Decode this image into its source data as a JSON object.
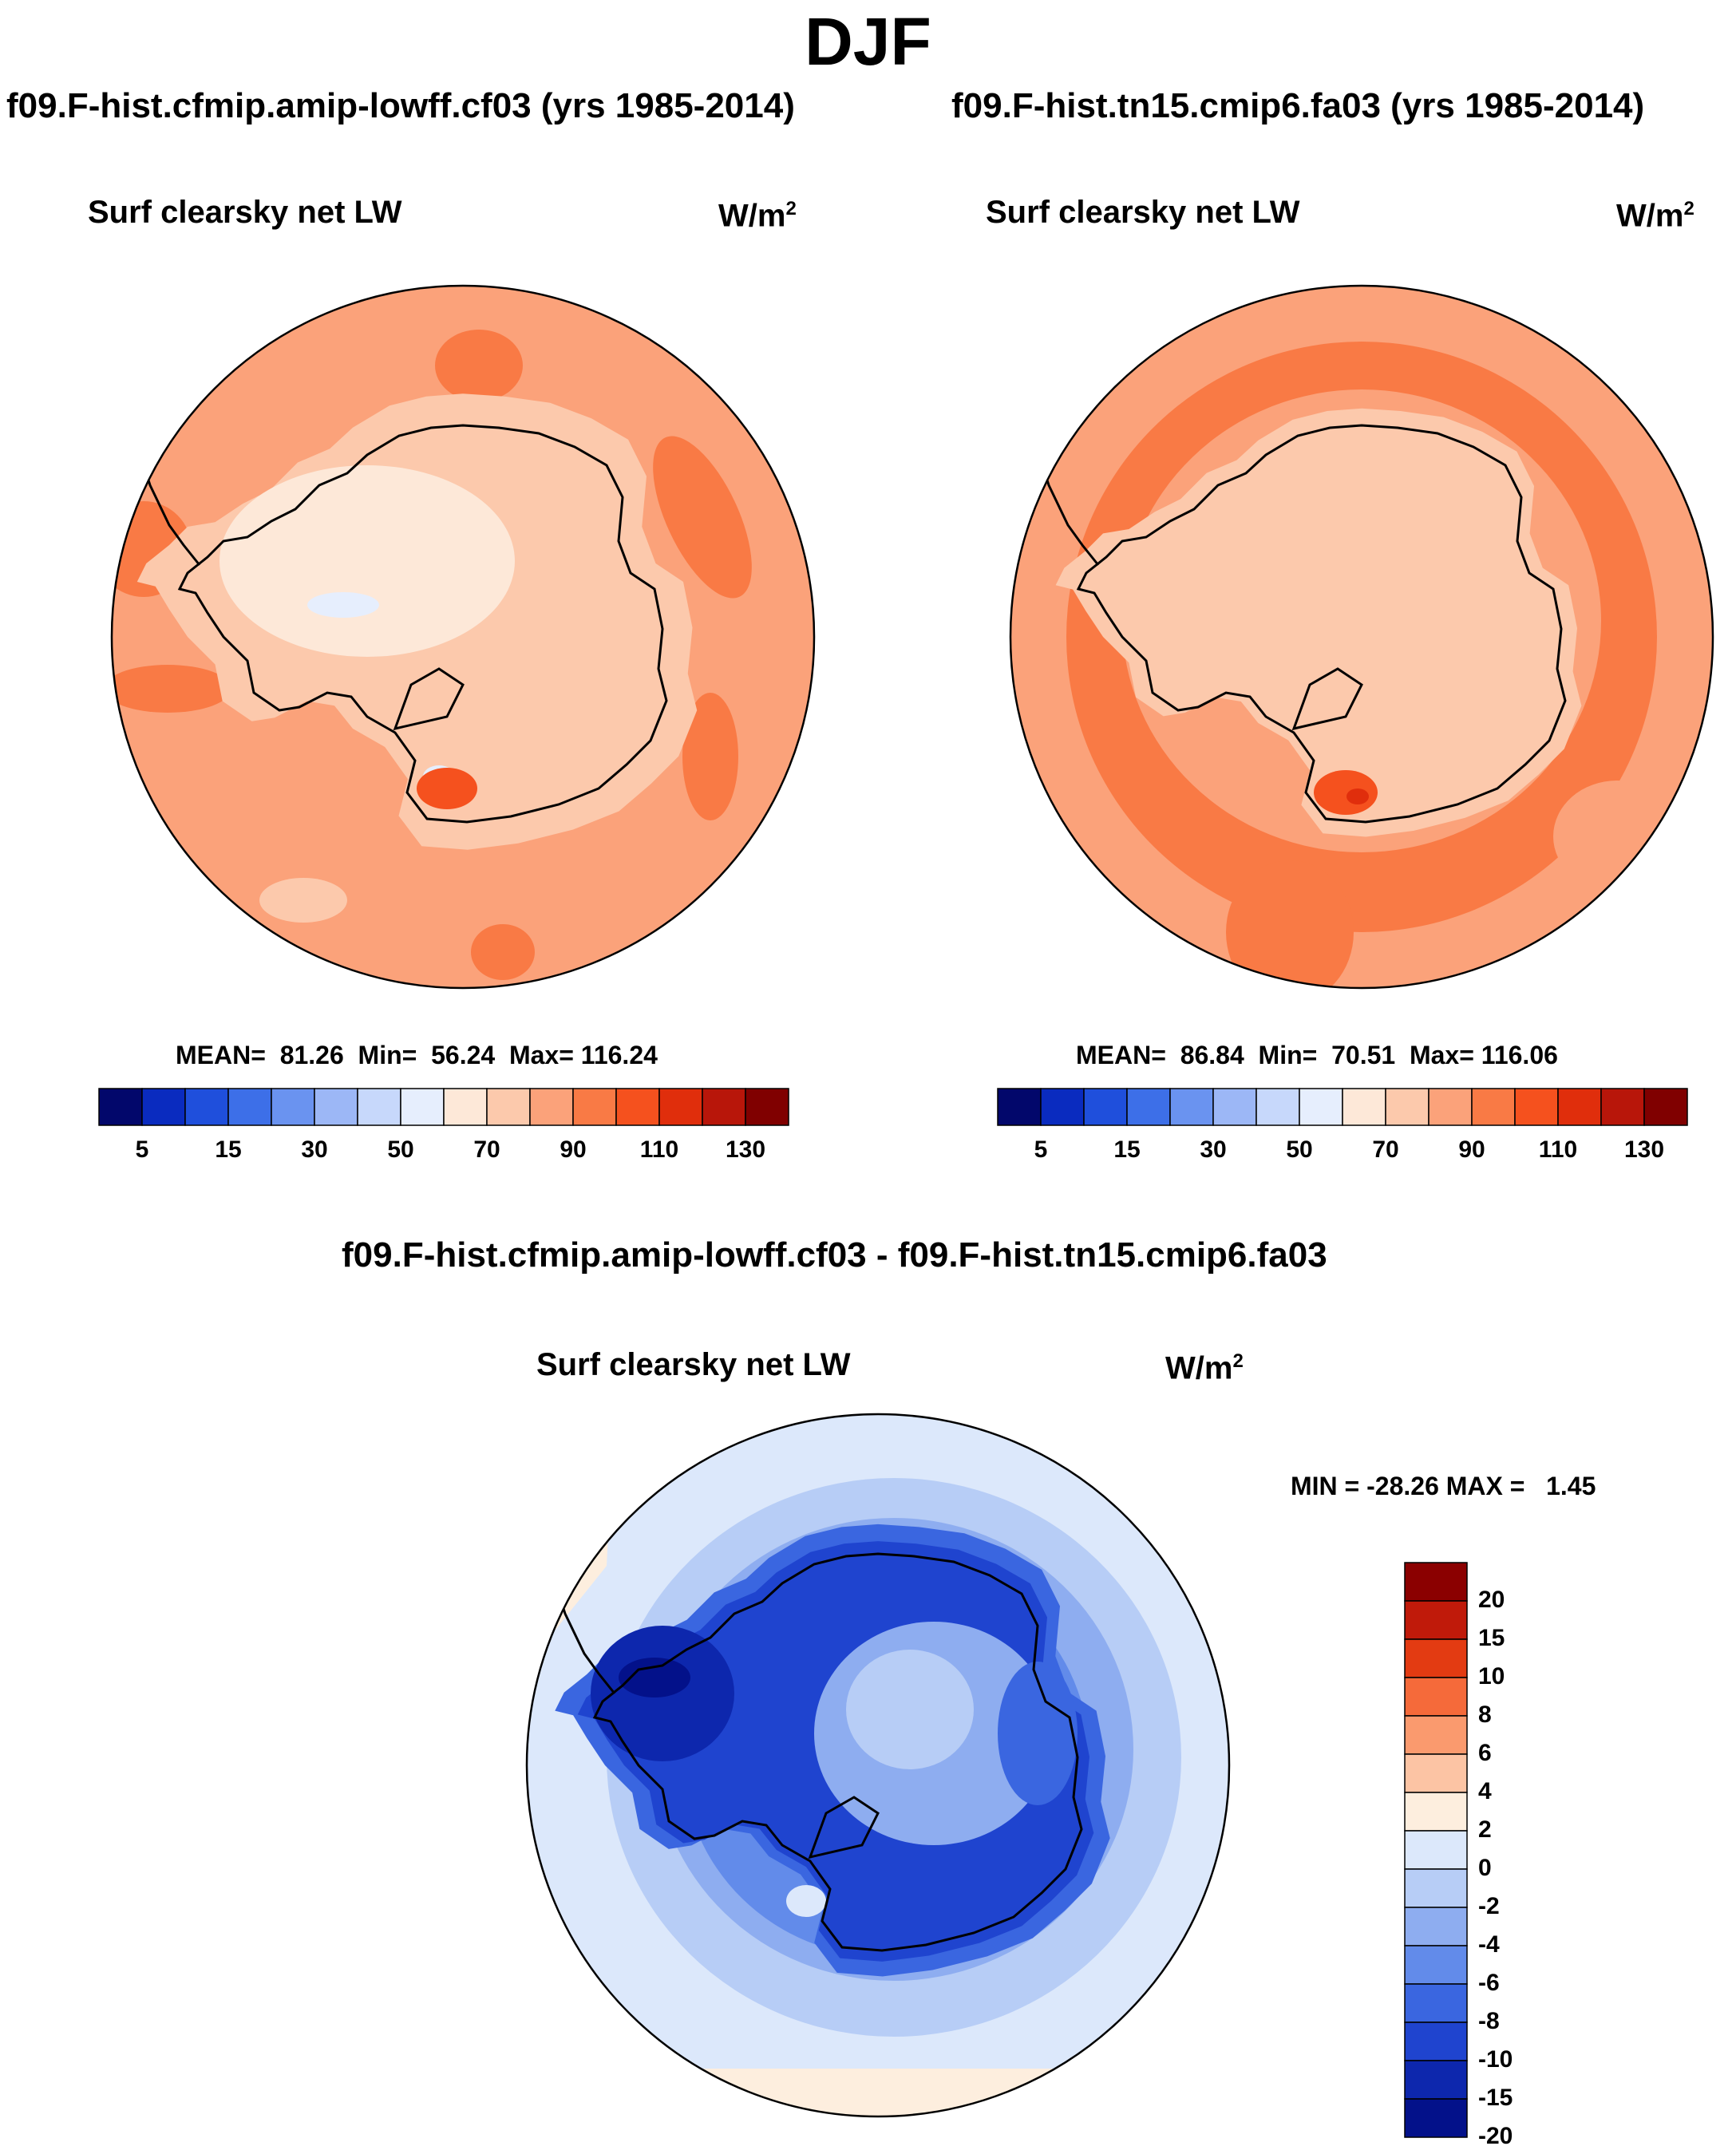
{
  "figure": {
    "season": "DJF"
  },
  "panels": [
    {
      "id": "left",
      "case_title": "f09.F-hist.cfmip.amip-lowff.cf03 (yrs 1985-2014)",
      "variable": "Surf clearsky net LW",
      "units": "W/m",
      "units_sup": "2",
      "stats": {
        "mean_label": "MEAN=",
        "mean": "81.26",
        "min_label": "Min=",
        "min": "56.24",
        "max_label": "Max=",
        "max": "116.24"
      }
    },
    {
      "id": "right",
      "case_title": "f09.F-hist.tn15.cmip6.fa03 (yrs 1985-2014)",
      "variable": "Surf clearsky net LW",
      "units": "W/m",
      "units_sup": "2",
      "stats": {
        "mean_label": "MEAN=",
        "mean": "86.84",
        "min_label": "Min=",
        "min": "70.51",
        "max_label": "Max=",
        "max": "116.06"
      }
    }
  ],
  "diff_panel": {
    "case_title": "f09.F-hist.cfmip.amip-lowff.cf03 - f09.F-hist.tn15.cmip6.fa03",
    "variable": "Surf clearsky net LW",
    "units": "W/m",
    "units_sup": "2",
    "stats": {
      "min_label": "MIN =",
      "min": "-28.26",
      "max_label": "MAX =",
      "max": "1.45"
    }
  },
  "chart_data": [
    {
      "type": "heatmap",
      "title": "Surf clearsky net LW",
      "projection": "south polar stereographic",
      "units": "W/m2",
      "colorbar": {
        "orientation": "horizontal",
        "levels": [
          5,
          10,
          15,
          20,
          30,
          40,
          50,
          60,
          70,
          80,
          90,
          100,
          110,
          120,
          130
        ],
        "tick_labels": [
          "5",
          "15",
          "30",
          "50",
          "70",
          "90",
          "110",
          "130"
        ],
        "colors": [
          "#02076b",
          "#0a2bbf",
          "#1f4fdc",
          "#3d6fe8",
          "#6a93f0",
          "#9cb7f6",
          "#c7d8fb",
          "#e6eefd",
          "#fde8d8",
          "#fcc9ac",
          "#fba27a",
          "#f97a45",
          "#f5511e",
          "#e02e0c",
          "#b8160a",
          "#800000"
        ]
      },
      "series": [
        {
          "name": "f09.F-hist.cfmip.amip-lowff.cf03",
          "mean": 81.26,
          "min": 56.24,
          "max": 116.24
        },
        {
          "name": "f09.F-hist.tn15.cmip6.fa03",
          "mean": 86.84,
          "min": 70.51,
          "max": 116.06
        }
      ]
    },
    {
      "type": "heatmap",
      "title": "Surf clearsky net LW",
      "projection": "south polar stereographic",
      "units": "W/m2",
      "colorbar": {
        "orientation": "vertical",
        "levels": [
          -20,
          -15,
          -10,
          -8,
          -6,
          -4,
          -2,
          0,
          2,
          4,
          6,
          8,
          10,
          15,
          20
        ],
        "tick_labels": [
          "20",
          "15",
          "10",
          "8",
          "6",
          "4",
          "2",
          "0",
          "-2",
          "-4",
          "-6",
          "-8",
          "-10",
          "-15",
          "-20"
        ],
        "colors": [
          "#8b0000",
          "#c01a0a",
          "#e33b12",
          "#f56a3a",
          "#fa9a6e",
          "#fcc4a4",
          "#fdeede",
          "#dce8fb",
          "#b7cdf6",
          "#8eadf0",
          "#628bea",
          "#3a66e0",
          "#1f44cf",
          "#0d27ad",
          "#03118a"
        ]
      },
      "series": [
        {
          "name": "f09.F-hist.cfmip.amip-lowff.cf03 - f09.F-hist.tn15.cmip6.fa03",
          "min": -28.26,
          "max": 1.45
        }
      ]
    }
  ]
}
